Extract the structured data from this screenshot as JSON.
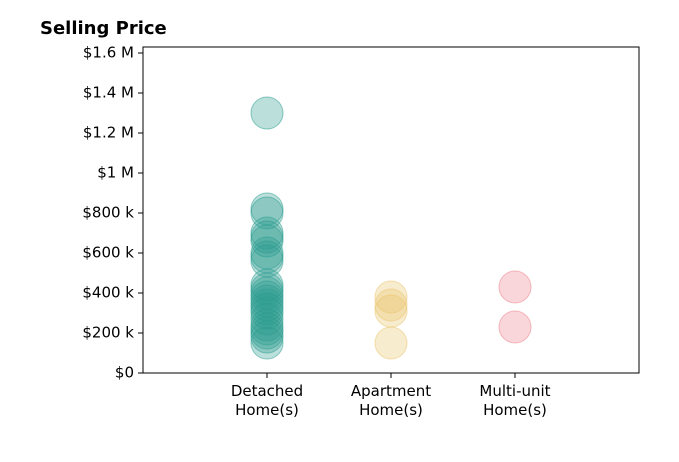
{
  "chart_data": {
    "type": "strip",
    "title": "Selling Price",
    "categories": [
      "Detached\nHome(s)",
      "Apartment\nHome(s)",
      "Multi-unit\nHome(s)"
    ],
    "values": [
      [
        1300000,
        820000,
        800000,
        700000,
        680000,
        660000,
        600000,
        580000,
        560000,
        440000,
        420000,
        400000,
        380000,
        360000,
        340000,
        320000,
        300000,
        270000,
        240000,
        220000,
        200000,
        180000,
        150000
      ],
      [
        380000,
        340000,
        310000,
        150000
      ],
      [
        430000,
        230000
      ]
    ],
    "colors": [
      "#2a9d8f",
      "#e9c46a",
      "#ec7f8a"
    ],
    "opacity": 0.32,
    "xlim": [
      0,
      4
    ],
    "ylim": [
      0,
      1630000
    ],
    "yticks": [
      {
        "value": 0,
        "label": "$0"
      },
      {
        "value": 200000,
        "label": "$200 k"
      },
      {
        "value": 400000,
        "label": "$400 k"
      },
      {
        "value": 600000,
        "label": "$600 k"
      },
      {
        "value": 800000,
        "label": "$800 k"
      },
      {
        "value": 1000000,
        "label": "$1 M"
      },
      {
        "value": 1200000,
        "label": "$1.2 M"
      },
      {
        "value": 1400000,
        "label": "$1.4 M"
      },
      {
        "value": 1600000,
        "label": "$1.6 M"
      }
    ],
    "grid": false
  }
}
